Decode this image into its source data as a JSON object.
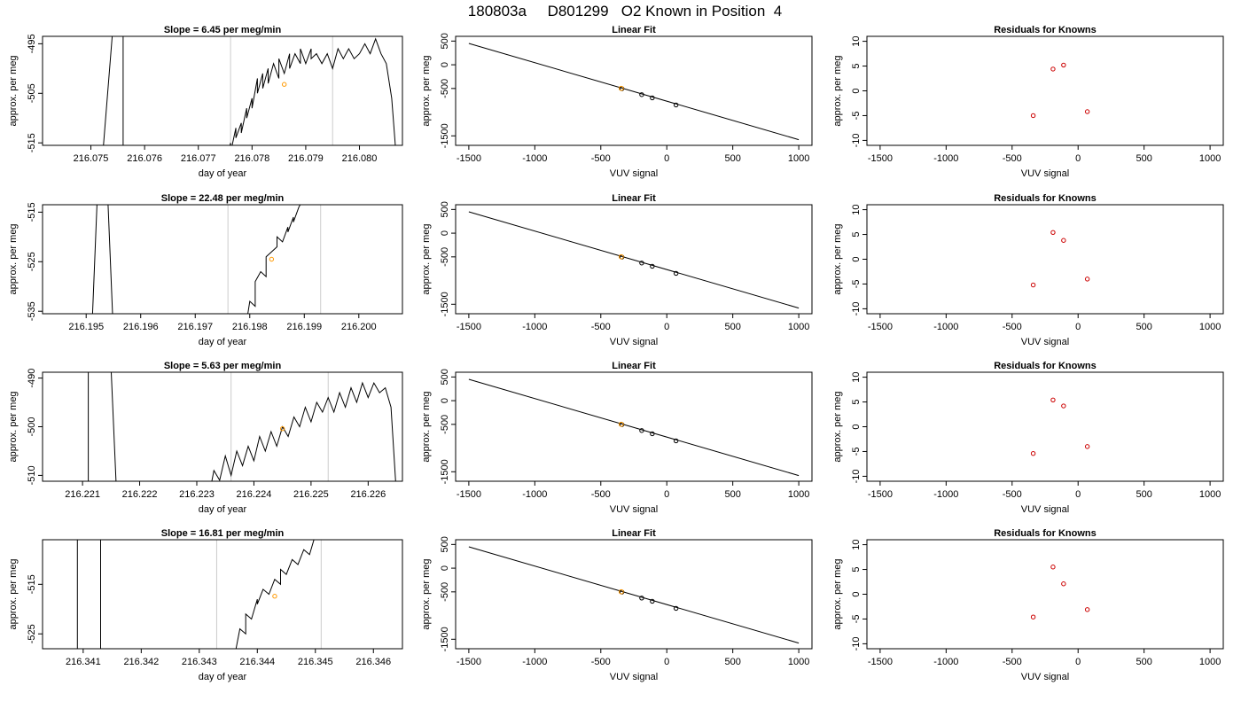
{
  "figure": {
    "title": "180803a     D801299   O2 Known in Position  4"
  },
  "style": {
    "trace_color": "#000000",
    "vline_color": "#cccccc",
    "known_marker_color": "#ff9900",
    "fit_marker_color": "#000000",
    "residual_marker_color": "#cc0000"
  },
  "chart_data": [
    {
      "type": "line",
      "row": 0,
      "col": 0,
      "title": "Slope =  6.45  per meg/min",
      "xlabel": "day of year",
      "ylabel": "approx. per meg",
      "xlim": [
        216.0741,
        216.0808
      ],
      "ylim": [
        -515.5,
        -493.5
      ],
      "xticks": [
        216.075,
        216.076,
        216.077,
        216.078,
        216.079,
        216.08
      ],
      "xtick_labels": [
        "216.075",
        "216.076",
        "216.077",
        "216.078",
        "216.079",
        "216.080"
      ],
      "yticks": [
        -495,
        -505,
        -515
      ],
      "ytick_labels": [
        "-495",
        "-505",
        "-515"
      ],
      "vlines": [
        216.0776,
        216.0795
      ],
      "trace": [
        [
          216.0752,
          -520
        ],
        [
          216.0754,
          -493
        ],
        [
          216.0756,
          -493
        ],
        [
          216.0756,
          -520
        ],
        [
          216.0775,
          -520
        ],
        [
          216.0776,
          -515
        ],
        [
          216.0776,
          -517
        ],
        [
          216.0777,
          -512
        ],
        [
          216.0777,
          -514
        ],
        [
          216.0778,
          -511
        ],
        [
          216.0778,
          -513
        ],
        [
          216.0779,
          -508
        ],
        [
          216.0779,
          -510
        ],
        [
          216.078,
          -506
        ],
        [
          216.078,
          -508
        ],
        [
          216.0781,
          -502
        ],
        [
          216.0781,
          -505
        ],
        [
          216.0782,
          -501
        ],
        [
          216.0782,
          -504
        ],
        [
          216.0783,
          -500
        ],
        [
          216.0783,
          -503
        ],
        [
          216.0784,
          -499
        ],
        [
          216.0785,
          -502
        ],
        [
          216.0785,
          -498
        ],
        [
          216.0786,
          -501
        ],
        [
          216.0787,
          -497
        ],
        [
          216.0787,
          -500
        ],
        [
          216.0788,
          -497
        ],
        [
          216.0789,
          -499
        ],
        [
          216.0789,
          -496
        ],
        [
          216.079,
          -499
        ],
        [
          216.0791,
          -496
        ],
        [
          216.0791,
          -498
        ],
        [
          216.0792,
          -497
        ],
        [
          216.0793,
          -499
        ],
        [
          216.0794,
          -497
        ],
        [
          216.0795,
          -500
        ],
        [
          216.0796,
          -496
        ],
        [
          216.0797,
          -498
        ],
        [
          216.0798,
          -496
        ],
        [
          216.0799,
          -498
        ],
        [
          216.08,
          -497
        ],
        [
          216.0801,
          -495
        ],
        [
          216.0802,
          -497
        ],
        [
          216.0803,
          -494
        ],
        [
          216.0804,
          -497
        ],
        [
          216.0805,
          -499
        ],
        [
          216.0806,
          -506
        ],
        [
          216.0807,
          -520
        ]
      ],
      "points": [
        [
          216.0786,
          -503.2
        ]
      ]
    },
    {
      "type": "line",
      "row": 1,
      "col": 0,
      "title": "Slope =  22.48  per meg/min",
      "xlabel": "day of year",
      "ylabel": "approx. per meg",
      "xlim": [
        216.1942,
        216.2008
      ],
      "ylim": [
        -535.5,
        -513.5
      ],
      "xticks": [
        216.195,
        216.196,
        216.197,
        216.198,
        216.199,
        216.2
      ],
      "xtick_labels": [
        "216.195",
        "216.196",
        "216.197",
        "216.198",
        "216.199",
        "216.200"
      ],
      "yticks": [
        -515,
        -525,
        -535
      ],
      "ytick_labels": [
        "-515",
        "-525",
        "-535"
      ],
      "vlines": [
        216.1976,
        216.1993
      ],
      "trace": [
        [
          216.1951,
          -540
        ],
        [
          216.1952,
          -513
        ],
        [
          216.1954,
          -513
        ],
        [
          216.1955,
          -540
        ],
        [
          216.1979,
          -540
        ],
        [
          216.198,
          -533
        ],
        [
          216.1981,
          -534
        ],
        [
          216.1981,
          -529
        ],
        [
          216.1982,
          -527
        ],
        [
          216.1983,
          -528
        ],
        [
          216.1983,
          -524
        ],
        [
          216.1984,
          -523
        ],
        [
          216.1985,
          -522
        ],
        [
          216.1985,
          -520
        ],
        [
          216.1986,
          -521
        ],
        [
          216.1987,
          -518
        ],
        [
          216.1987,
          -519
        ],
        [
          216.1988,
          -516
        ],
        [
          216.1988,
          -517
        ],
        [
          216.1989,
          -514
        ],
        [
          216.199,
          -512
        ]
      ],
      "points": [
        [
          216.1984,
          -524.5
        ]
      ]
    },
    {
      "type": "line",
      "row": 2,
      "col": 0,
      "title": "Slope =  5.63  per meg/min",
      "xlabel": "day of year",
      "ylabel": "approx. per meg",
      "xlim": [
        216.2203,
        216.2266
      ],
      "ylim": [
        -511.2,
        -488.8
      ],
      "xticks": [
        216.221,
        216.222,
        216.223,
        216.224,
        216.225,
        216.226
      ],
      "xtick_labels": [
        "216.221",
        "216.222",
        "216.223",
        "216.224",
        "216.225",
        "216.226"
      ],
      "yticks": [
        -490,
        -500,
        -510
      ],
      "ytick_labels": [
        "-490",
        "-500",
        "-510"
      ],
      "vlines": [
        216.2236,
        216.2253
      ],
      "trace": [
        [
          216.2211,
          -515
        ],
        [
          216.2211,
          -488
        ],
        [
          216.2215,
          -488
        ],
        [
          216.2216,
          -515
        ],
        [
          216.2232,
          -515
        ],
        [
          216.2233,
          -509
        ],
        [
          216.2234,
          -511
        ],
        [
          216.2235,
          -506
        ],
        [
          216.2236,
          -510
        ],
        [
          216.2237,
          -505
        ],
        [
          216.2238,
          -508
        ],
        [
          216.2239,
          -504
        ],
        [
          216.224,
          -507
        ],
        [
          216.2241,
          -502
        ],
        [
          216.2242,
          -505
        ],
        [
          216.2243,
          -501
        ],
        [
          216.2244,
          -504
        ],
        [
          216.2245,
          -500
        ],
        [
          216.2246,
          -502
        ],
        [
          216.2247,
          -498
        ],
        [
          216.2248,
          -500
        ],
        [
          216.2249,
          -496
        ],
        [
          216.225,
          -499
        ],
        [
          216.2251,
          -495
        ],
        [
          216.2252,
          -497
        ],
        [
          216.2253,
          -494
        ],
        [
          216.2254,
          -497
        ],
        [
          216.2255,
          -493
        ],
        [
          216.2256,
          -496
        ],
        [
          216.2257,
          -492
        ],
        [
          216.2258,
          -495
        ],
        [
          216.2259,
          -491
        ],
        [
          216.226,
          -494
        ],
        [
          216.2261,
          -491
        ],
        [
          216.2262,
          -493
        ],
        [
          216.2263,
          -492
        ],
        [
          216.2264,
          -496
        ],
        [
          216.2265,
          -515
        ]
      ],
      "points": [
        [
          216.2245,
          -500.4
        ]
      ]
    },
    {
      "type": "line",
      "row": 3,
      "col": 0,
      "title": "Slope =  16.81  per meg/min",
      "xlabel": "day of year",
      "ylabel": "approx. per meg",
      "xlim": [
        216.3403,
        216.3465
      ],
      "ylim": [
        -528,
        -506
      ],
      "xticks": [
        216.341,
        216.342,
        216.343,
        216.344,
        216.345,
        216.346
      ],
      "xtick_labels": [
        "216.341",
        "216.342",
        "216.343",
        "216.344",
        "216.345",
        "216.346"
      ],
      "yticks": [
        -515,
        -525
      ],
      "ytick_labels": [
        "-515",
        "-525"
      ],
      "vlines": [
        216.3433,
        216.3451
      ],
      "trace": [
        [
          216.3409,
          -530
        ],
        [
          216.3409,
          -505
        ],
        [
          216.3413,
          -505
        ],
        [
          216.3413,
          -530
        ],
        [
          216.3436,
          -530
        ],
        [
          216.3437,
          -524
        ],
        [
          216.3438,
          -525
        ],
        [
          216.3438,
          -521
        ],
        [
          216.3439,
          -522
        ],
        [
          216.344,
          -518
        ],
        [
          216.344,
          -519
        ],
        [
          216.3441,
          -516
        ],
        [
          216.3442,
          -517
        ],
        [
          216.3443,
          -514
        ],
        [
          216.3444,
          -515
        ],
        [
          216.3444,
          -512
        ],
        [
          216.3445,
          -513
        ],
        [
          216.3446,
          -510
        ],
        [
          216.3447,
          -511
        ],
        [
          216.3448,
          -508
        ],
        [
          216.3449,
          -509
        ],
        [
          216.345,
          -505
        ]
      ],
      "points": [
        [
          216.3443,
          -517.4
        ]
      ]
    },
    {
      "type": "scatter",
      "row": 0,
      "col": 1,
      "title": "Linear Fit",
      "xlabel": "VUV signal",
      "ylabel": "approx. per meg",
      "xlim": [
        -1600,
        1100
      ],
      "ylim": [
        -1700,
        600
      ],
      "xticks": [
        -1500,
        -1000,
        -500,
        0,
        500,
        1000
      ],
      "xtick_labels": [
        "-1500",
        "-1000",
        "-500",
        "0",
        "500",
        "1000"
      ],
      "yticks": [
        500,
        0,
        -500,
        -1500
      ],
      "ytick_labels": [
        "500",
        "0",
        "-500",
        "-1500"
      ],
      "fit_line": [
        [
          -1500,
          450
        ],
        [
          1000,
          -1580
        ]
      ],
      "points": [
        [
          -340,
          -505
        ],
        [
          -190,
          -630
        ],
        [
          -110,
          -698
        ],
        [
          70,
          -848
        ]
      ],
      "highlight": [
        [
          -345,
          -498
        ]
      ]
    },
    {
      "type": "scatter",
      "row": 1,
      "col": 1,
      "title": "Linear Fit",
      "xlabel": "VUV signal",
      "ylabel": "approx. per meg",
      "xlim": [
        -1600,
        1100
      ],
      "ylim": [
        -1700,
        600
      ],
      "xticks": [
        -1500,
        -1000,
        -500,
        0,
        500,
        1000
      ],
      "xtick_labels": [
        "-1500",
        "-1000",
        "-500",
        "0",
        "500",
        "1000"
      ],
      "yticks": [
        500,
        0,
        -500,
        -1500
      ],
      "ytick_labels": [
        "500",
        "0",
        "-500",
        "-1500"
      ],
      "fit_line": [
        [
          -1500,
          450
        ],
        [
          1000,
          -1580
        ]
      ],
      "points": [
        [
          -340,
          -505
        ],
        [
          -190,
          -630
        ],
        [
          -110,
          -698
        ],
        [
          70,
          -848
        ]
      ],
      "highlight": [
        [
          -345,
          -498
        ]
      ]
    },
    {
      "type": "scatter",
      "row": 2,
      "col": 1,
      "title": "Linear Fit",
      "xlabel": "VUV signal",
      "ylabel": "approx. per meg",
      "xlim": [
        -1600,
        1100
      ],
      "ylim": [
        -1700,
        600
      ],
      "xticks": [
        -1500,
        -1000,
        -500,
        0,
        500,
        1000
      ],
      "xtick_labels": [
        "-1500",
        "-1000",
        "-500",
        "0",
        "500",
        "1000"
      ],
      "yticks": [
        500,
        0,
        -500,
        -1500
      ],
      "ytick_labels": [
        "500",
        "0",
        "-500",
        "-1500"
      ],
      "fit_line": [
        [
          -1500,
          450
        ],
        [
          1000,
          -1580
        ]
      ],
      "points": [
        [
          -340,
          -505
        ],
        [
          -190,
          -630
        ],
        [
          -110,
          -698
        ],
        [
          70,
          -848
        ]
      ],
      "highlight": [
        [
          -345,
          -498
        ]
      ]
    },
    {
      "type": "scatter",
      "row": 3,
      "col": 1,
      "title": "Linear Fit",
      "xlabel": "VUV signal",
      "ylabel": "approx. per meg",
      "xlim": [
        -1600,
        1100
      ],
      "ylim": [
        -1700,
        600
      ],
      "xticks": [
        -1500,
        -1000,
        -500,
        0,
        500,
        1000
      ],
      "xtick_labels": [
        "-1500",
        "-1000",
        "-500",
        "0",
        "500",
        "1000"
      ],
      "yticks": [
        500,
        0,
        -500,
        -1500
      ],
      "ytick_labels": [
        "500",
        "0",
        "-500",
        "-1500"
      ],
      "fit_line": [
        [
          -1500,
          450
        ],
        [
          1000,
          -1580
        ]
      ],
      "points": [
        [
          -340,
          -505
        ],
        [
          -190,
          -630
        ],
        [
          -110,
          -698
        ],
        [
          70,
          -848
        ]
      ],
      "highlight": [
        [
          -345,
          -498
        ]
      ]
    },
    {
      "type": "scatter",
      "row": 0,
      "col": 2,
      "title": "Residuals for Knowns",
      "xlabel": "VUV signal",
      "ylabel": "approx. per meg",
      "xlim": [
        -1600,
        1100
      ],
      "ylim": [
        -11,
        11
      ],
      "xticks": [
        -1500,
        -1000,
        -500,
        0,
        500,
        1000
      ],
      "xtick_labels": [
        "-1500",
        "-1000",
        "-500",
        "0",
        "500",
        "1000"
      ],
      "yticks": [
        10,
        5,
        0,
        -5,
        -10
      ],
      "ytick_labels": [
        "10",
        "5",
        "0",
        "-5",
        "-10"
      ],
      "points": [
        [
          -340,
          -5.0
        ],
        [
          -190,
          4.4
        ],
        [
          -110,
          5.2
        ],
        [
          70,
          -4.2
        ]
      ]
    },
    {
      "type": "scatter",
      "row": 1,
      "col": 2,
      "title": "Residuals for Knowns",
      "xlabel": "VUV signal",
      "ylabel": "approx. per meg",
      "xlim": [
        -1600,
        1100
      ],
      "ylim": [
        -11,
        11
      ],
      "xticks": [
        -1500,
        -1000,
        -500,
        0,
        500,
        1000
      ],
      "xtick_labels": [
        "-1500",
        "-1000",
        "-500",
        "0",
        "500",
        "1000"
      ],
      "yticks": [
        10,
        5,
        0,
        -5,
        -10
      ],
      "ytick_labels": [
        "10",
        "5",
        "0",
        "-5",
        "-10"
      ],
      "points": [
        [
          -340,
          -5.2
        ],
        [
          -190,
          5.4
        ],
        [
          -110,
          3.8
        ],
        [
          70,
          -4.0
        ]
      ]
    },
    {
      "type": "scatter",
      "row": 2,
      "col": 2,
      "title": "Residuals for Knowns",
      "xlabel": "VUV signal",
      "ylabel": "approx. per meg",
      "xlim": [
        -1600,
        1100
      ],
      "ylim": [
        -11,
        11
      ],
      "xticks": [
        -1500,
        -1000,
        -500,
        0,
        500,
        1000
      ],
      "xtick_labels": [
        "-1500",
        "-1000",
        "-500",
        "0",
        "500",
        "1000"
      ],
      "yticks": [
        10,
        5,
        0,
        -5,
        -10
      ],
      "ytick_labels": [
        "10",
        "5",
        "0",
        "-5",
        "-10"
      ],
      "points": [
        [
          -340,
          -5.4
        ],
        [
          -190,
          5.4
        ],
        [
          -110,
          4.2
        ],
        [
          70,
          -4.0
        ]
      ]
    },
    {
      "type": "scatter",
      "row": 3,
      "col": 2,
      "title": "Residuals for Knowns",
      "xlabel": "VUV signal",
      "ylabel": "approx. per meg",
      "xlim": [
        -1600,
        1100
      ],
      "ylim": [
        -11,
        11
      ],
      "xticks": [
        -1500,
        -1000,
        -500,
        0,
        500,
        1000
      ],
      "xtick_labels": [
        "-1500",
        "-1000",
        "-500",
        "0",
        "500",
        "1000"
      ],
      "yticks": [
        10,
        5,
        0,
        -5,
        -10
      ],
      "ytick_labels": [
        "10",
        "5",
        "0",
        "-5",
        "-10"
      ],
      "points": [
        [
          -340,
          -4.6
        ],
        [
          -190,
          5.5
        ],
        [
          -110,
          2.1
        ],
        [
          70,
          -3.1
        ]
      ]
    }
  ]
}
